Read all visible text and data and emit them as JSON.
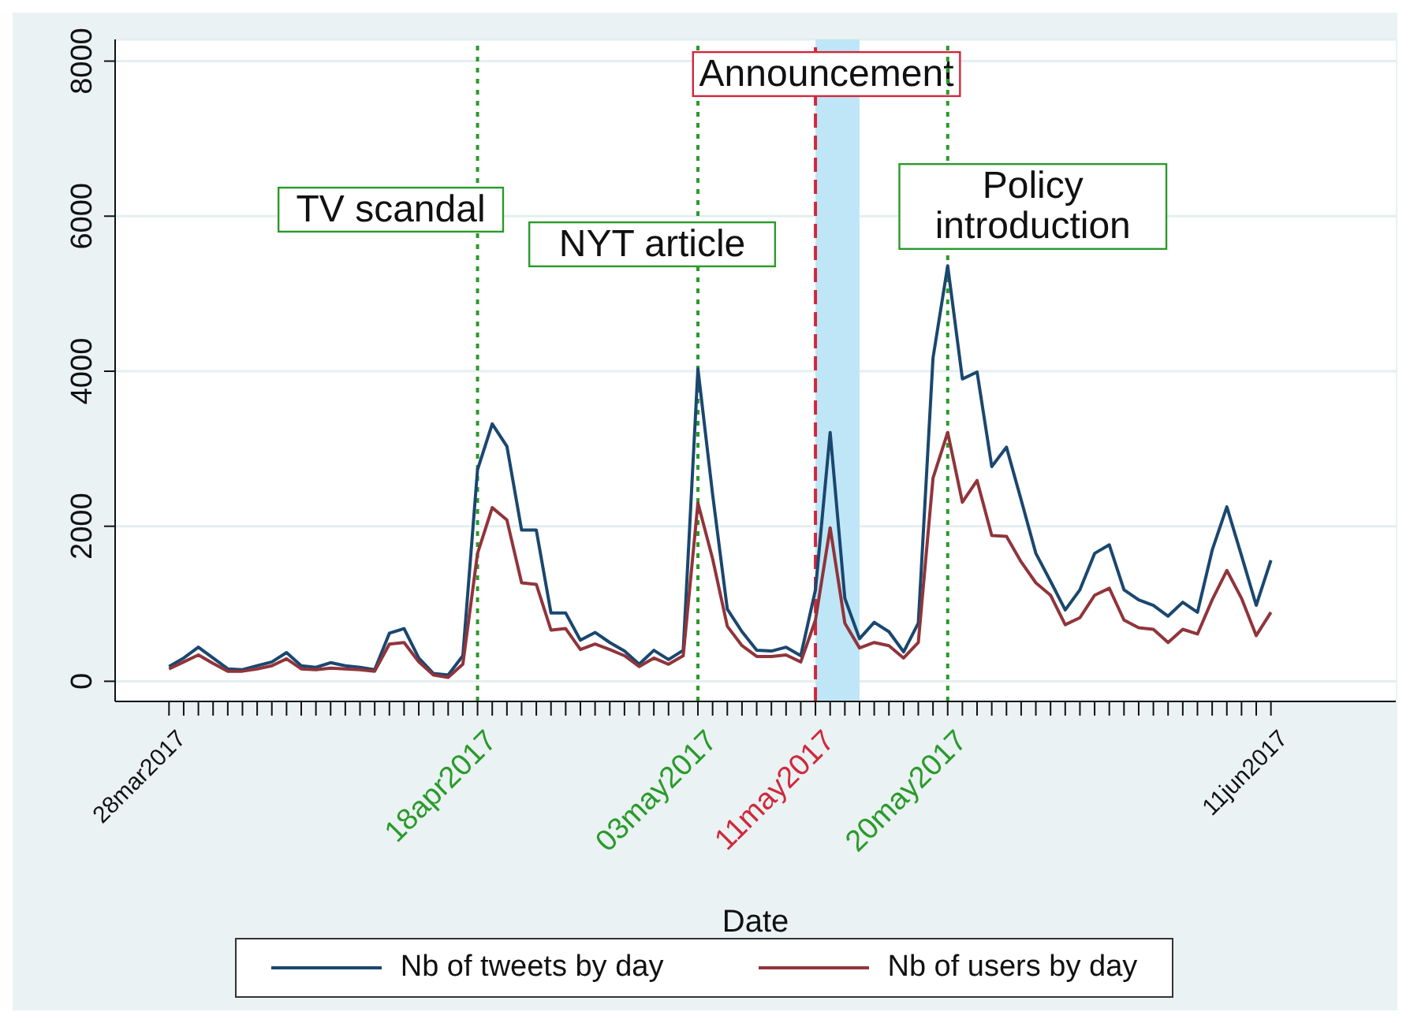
{
  "chart_data": {
    "type": "line",
    "xlabel": "Date",
    "x": [
      "2017-03-28",
      "2017-03-29",
      "2017-03-30",
      "2017-03-31",
      "2017-04-01",
      "2017-04-02",
      "2017-04-03",
      "2017-04-04",
      "2017-04-05",
      "2017-04-06",
      "2017-04-07",
      "2017-04-08",
      "2017-04-09",
      "2017-04-10",
      "2017-04-11",
      "2017-04-12",
      "2017-04-13",
      "2017-04-14",
      "2017-04-15",
      "2017-04-16",
      "2017-04-17",
      "2017-04-18",
      "2017-04-19",
      "2017-04-20",
      "2017-04-21",
      "2017-04-22",
      "2017-04-23",
      "2017-04-24",
      "2017-04-25",
      "2017-04-26",
      "2017-04-27",
      "2017-04-28",
      "2017-04-29",
      "2017-04-30",
      "2017-05-01",
      "2017-05-02",
      "2017-05-03",
      "2017-05-04",
      "2017-05-05",
      "2017-05-06",
      "2017-05-07",
      "2017-05-08",
      "2017-05-09",
      "2017-05-10",
      "2017-05-11",
      "2017-05-12",
      "2017-05-13",
      "2017-05-14",
      "2017-05-15",
      "2017-05-16",
      "2017-05-17",
      "2017-05-18",
      "2017-05-19",
      "2017-05-20",
      "2017-05-21",
      "2017-05-22",
      "2017-05-23",
      "2017-05-24",
      "2017-05-25",
      "2017-05-26",
      "2017-05-27",
      "2017-05-28",
      "2017-05-29",
      "2017-05-30",
      "2017-05-31",
      "2017-06-01",
      "2017-06-02",
      "2017-06-03",
      "2017-06-04",
      "2017-06-05",
      "2017-06-06",
      "2017-06-07",
      "2017-06-08",
      "2017-06-09",
      "2017-06-10",
      "2017-06-11"
    ],
    "series": [
      {
        "name": "Nb of tweets by day",
        "color": "#1a476f",
        "values": [
          190,
          300,
          440,
          300,
          160,
          150,
          200,
          250,
          370,
          200,
          180,
          240,
          200,
          180,
          150,
          620,
          680,
          300,
          100,
          80,
          330,
          2730,
          3320,
          3030,
          1950,
          1950,
          880,
          880,
          530,
          630,
          500,
          390,
          220,
          400,
          280,
          400,
          4030,
          2410,
          930,
          640,
          400,
          390,
          440,
          330,
          1180,
          3210,
          1070,
          550,
          760,
          640,
          380,
          750,
          4170,
          5360,
          3900,
          3990,
          2770,
          3020,
          2340,
          1650,
          1290,
          920,
          1180,
          1650,
          1760,
          1180,
          1050,
          980,
          840,
          1020,
          890,
          1690,
          2250,
          1620,
          980,
          1560
        ]
      },
      {
        "name": "Nb of users by day",
        "color": "#90353b",
        "values": [
          160,
          250,
          340,
          230,
          130,
          130,
          160,
          200,
          290,
          160,
          150,
          170,
          160,
          150,
          130,
          480,
          500,
          250,
          80,
          50,
          220,
          1650,
          2240,
          2080,
          1270,
          1250,
          660,
          680,
          410,
          480,
          410,
          330,
          190,
          300,
          220,
          330,
          2300,
          1580,
          710,
          460,
          320,
          320,
          340,
          250,
          790,
          1980,
          750,
          430,
          500,
          460,
          300,
          500,
          2620,
          3210,
          2310,
          2590,
          1880,
          1870,
          1540,
          1270,
          1110,
          730,
          820,
          1110,
          1200,
          790,
          690,
          670,
          500,
          670,
          610,
          1050,
          1430,
          1070,
          590,
          890
        ]
      }
    ],
    "xlim": [
      "2017-03-24T08:00",
      "2017-06-19T12:00"
    ],
    "xticks": [
      {
        "value": "2017-03-28",
        "label": "28mar2017"
      },
      {
        "value": "2017-03-29",
        "label": null
      },
      {
        "value": "2017-03-30",
        "label": null
      },
      {
        "value": "2017-03-31",
        "label": null
      },
      {
        "value": "2017-04-01",
        "label": null
      },
      {
        "value": "2017-04-02",
        "label": null
      },
      {
        "value": "2017-04-03",
        "label": null
      },
      {
        "value": "2017-04-04",
        "label": null
      },
      {
        "value": "2017-04-05",
        "label": null
      },
      {
        "value": "2017-04-06",
        "label": null
      },
      {
        "value": "2017-04-07",
        "label": null
      },
      {
        "value": "2017-04-08",
        "label": null
      },
      {
        "value": "2017-04-09",
        "label": null
      },
      {
        "value": "2017-04-10",
        "label": null
      },
      {
        "value": "2017-04-11",
        "label": null
      },
      {
        "value": "2017-04-12",
        "label": null
      },
      {
        "value": "2017-04-13",
        "label": null
      },
      {
        "value": "2017-04-14",
        "label": null
      },
      {
        "value": "2017-04-15",
        "label": null
      },
      {
        "value": "2017-04-16",
        "label": null
      },
      {
        "value": "2017-04-17",
        "label": null
      },
      {
        "value": "2017-04-18",
        "label": "18apr2017"
      },
      {
        "value": "2017-04-19",
        "label": null
      },
      {
        "value": "2017-04-20",
        "label": null
      },
      {
        "value": "2017-04-21",
        "label": null
      },
      {
        "value": "2017-04-22",
        "label": null
      },
      {
        "value": "2017-04-23",
        "label": null
      },
      {
        "value": "2017-04-24",
        "label": null
      },
      {
        "value": "2017-04-25",
        "label": null
      },
      {
        "value": "2017-04-26",
        "label": null
      },
      {
        "value": "2017-04-27",
        "label": null
      },
      {
        "value": "2017-04-28",
        "label": null
      },
      {
        "value": "2017-04-29",
        "label": null
      },
      {
        "value": "2017-04-30",
        "label": null
      },
      {
        "value": "2017-05-01",
        "label": null
      },
      {
        "value": "2017-05-02",
        "label": null
      },
      {
        "value": "2017-05-03",
        "label": "03may2017"
      },
      {
        "value": "2017-05-04",
        "label": null
      },
      {
        "value": "2017-05-05",
        "label": null
      },
      {
        "value": "2017-05-06",
        "label": null
      },
      {
        "value": "2017-05-07",
        "label": null
      },
      {
        "value": "2017-05-08",
        "label": null
      },
      {
        "value": "2017-05-09",
        "label": null
      },
      {
        "value": "2017-05-10",
        "label": null
      },
      {
        "value": "2017-05-11",
        "label": "11may2017"
      },
      {
        "value": "2017-05-12",
        "label": null
      },
      {
        "value": "2017-05-13",
        "label": null
      },
      {
        "value": "2017-05-14",
        "label": null
      },
      {
        "value": "2017-05-15",
        "label": null
      },
      {
        "value": "2017-05-16",
        "label": null
      },
      {
        "value": "2017-05-17",
        "label": null
      },
      {
        "value": "2017-05-18",
        "label": null
      },
      {
        "value": "2017-05-19",
        "label": null
      },
      {
        "value": "2017-05-20",
        "label": "20may2017"
      },
      {
        "value": "2017-05-21",
        "label": null
      },
      {
        "value": "2017-05-22",
        "label": null
      },
      {
        "value": "2017-05-23",
        "label": null
      },
      {
        "value": "2017-05-24",
        "label": null
      },
      {
        "value": "2017-05-25",
        "label": null
      },
      {
        "value": "2017-05-26",
        "label": null
      },
      {
        "value": "2017-05-27",
        "label": null
      },
      {
        "value": "2017-05-28",
        "label": null
      },
      {
        "value": "2017-05-29",
        "label": null
      },
      {
        "value": "2017-05-30",
        "label": null
      },
      {
        "value": "2017-05-31",
        "label": null
      },
      {
        "value": "2017-06-01",
        "label": null
      },
      {
        "value": "2017-06-02",
        "label": null
      },
      {
        "value": "2017-06-03",
        "label": null
      },
      {
        "value": "2017-06-04",
        "label": null
      },
      {
        "value": "2017-06-05",
        "label": null
      },
      {
        "value": "2017-06-06",
        "label": null
      },
      {
        "value": "2017-06-07",
        "label": null
      },
      {
        "value": "2017-06-08",
        "label": null
      },
      {
        "value": "2017-06-09",
        "label": null
      },
      {
        "value": "2017-06-10",
        "label": null
      },
      {
        "value": "2017-06-11",
        "label": "11jun2017"
      }
    ],
    "ylim": [
      -260,
      8280
    ],
    "yticks": [
      0,
      2000,
      4000,
      6000,
      8000
    ],
    "ref_lines": [
      {
        "axis": "x",
        "value": "2017-04-18",
        "label": "TV scandal",
        "color": "#2a9a2a",
        "line_style": "dotted"
      },
      {
        "axis": "x",
        "value": "2017-05-03",
        "label": "NYT article",
        "color": "#2a9a2a",
        "line_style": "dotted"
      },
      {
        "axis": "x",
        "value": "2017-05-11",
        "label": "Announcement",
        "color": "#d0283c",
        "line_style": "dashed"
      },
      {
        "axis": "x",
        "value": "2017-05-20",
        "label": "Policy introduction",
        "color": "#2a9a2a",
        "line_style": "dotted"
      }
    ],
    "bands": [
      {
        "axis": "x",
        "from": "2017-05-11",
        "to": "2017-05-14",
        "color": "#bfe6f7"
      }
    ],
    "grid": "y",
    "legend": "bottom",
    "marker": "none",
    "line_style": "solid"
  }
}
